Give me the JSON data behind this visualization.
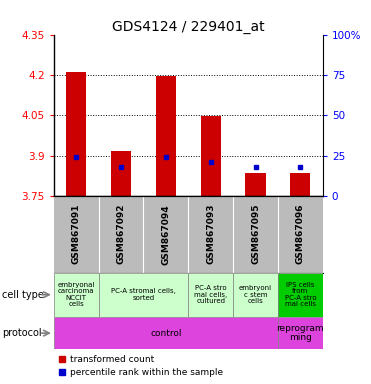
{
  "title": "GDS4124 / 229401_at",
  "samples": [
    "GSM867091",
    "GSM867092",
    "GSM867094",
    "GSM867093",
    "GSM867095",
    "GSM867096"
  ],
  "bar_tops": [
    4.21,
    3.915,
    4.195,
    4.046,
    3.835,
    3.835
  ],
  "bar_bottoms": [
    3.75,
    3.75,
    3.75,
    3.75,
    3.75,
    3.75
  ],
  "percentile_values": [
    3.893,
    3.856,
    3.893,
    3.876,
    3.856,
    3.856
  ],
  "ylim": [
    3.75,
    4.35
  ],
  "yticks": [
    3.75,
    3.9,
    4.05,
    4.2,
    4.35
  ],
  "ytick_labels": [
    "3.75",
    "3.9",
    "4.05",
    "4.2",
    "4.35"
  ],
  "right_yticks": [
    0,
    25,
    50,
    75,
    100
  ],
  "right_ytick_labels": [
    "0",
    "25",
    "50",
    "75",
    "100%"
  ],
  "bar_color": "#cc0000",
  "percentile_color": "#0000cc",
  "cell_type_spans": [
    {
      "start": 0,
      "end": 0,
      "label": "embryonal\ncarcinoma\nNCCIT\ncells",
      "color": "#ccffcc"
    },
    {
      "start": 1,
      "end": 2,
      "label": "PC-A stromal cells,\nsorted",
      "color": "#ccffcc"
    },
    {
      "start": 3,
      "end": 3,
      "label": "PC-A stro\nmal cells,\ncultured",
      "color": "#ccffcc"
    },
    {
      "start": 4,
      "end": 4,
      "label": "embryoni\nc stem\ncells",
      "color": "#ccffcc"
    },
    {
      "start": 5,
      "end": 5,
      "label": "IPS cells\nfrom\nPC-A stro\nmal cells",
      "color": "#00cc00"
    }
  ],
  "protocol_spans": [
    {
      "start": 0,
      "end": 4,
      "label": "control",
      "color": "#dd44dd"
    },
    {
      "start": 5,
      "end": 5,
      "label": "reprogram\nming",
      "color": "#dd44dd"
    }
  ],
  "cell_type_label": "cell type",
  "protocol_label": "protocol",
  "legend_items": [
    {
      "color": "#cc0000",
      "label": "transformed count"
    },
    {
      "color": "#0000cc",
      "label": "percentile rank within the sample"
    }
  ],
  "grid_color": "black",
  "bg_color": "#ffffff",
  "sample_bg_color": "#bbbbbb"
}
